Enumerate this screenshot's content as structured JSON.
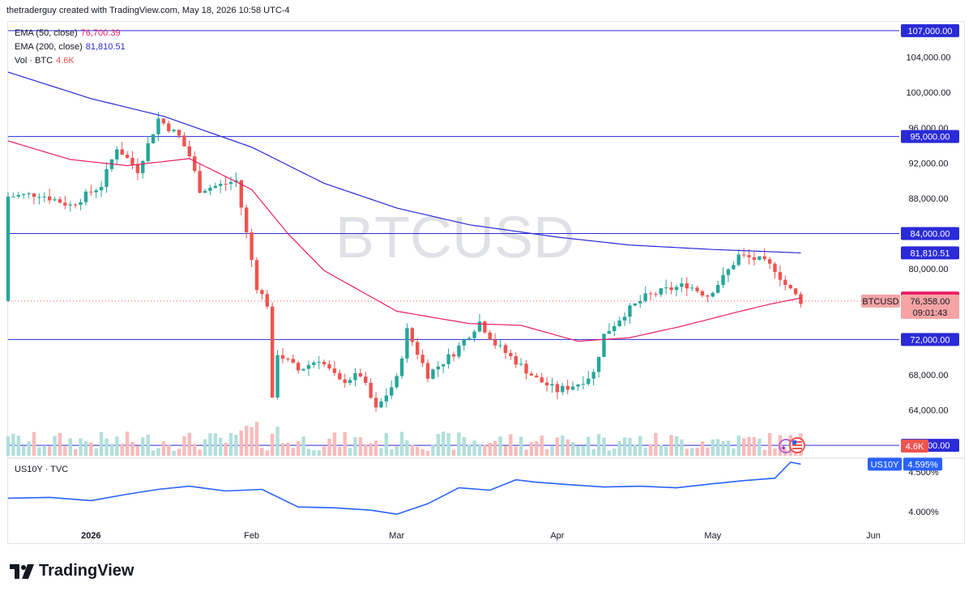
{
  "header": {
    "attribution": "thetraderguy created with TradingView.com, May 18, 2026 10:58 UTC-4"
  },
  "legend": {
    "ema50": {
      "label": "EMA (50, close)",
      "value": "76,700.39",
      "color": "#e91e63"
    },
    "ema200": {
      "label": "EMA (200, close)",
      "value": "81,810.51",
      "color": "#2a2ad8"
    },
    "vol": {
      "label": "Vol · BTC",
      "value": "4.6K",
      "color": "#ef5350"
    },
    "us10y": {
      "label": "US10Y · TVC"
    }
  },
  "watermark": "BTCUSD",
  "branding": {
    "name": "TradingView",
    "icon": "tradingview-logo-icon"
  },
  "colors": {
    "up": "#26a69a",
    "down": "#ef5350",
    "vol_up": "#b2dfdb",
    "vol_down": "#f8bbbb",
    "level": "#2a2ad8",
    "us10y_line": "#2962ff"
  },
  "chart_data": [
    {
      "type": "candlestick",
      "symbol": "BTCUSD",
      "ylim": [
        59000,
        108000
      ],
      "y_ticks": [
        "104,000.00",
        "100,000.00",
        "96,000.00",
        "92,000.00",
        "88,000.00",
        "80,000.00",
        "68,000.00",
        "64,000.00"
      ],
      "x_ticks": [
        "2026",
        "Feb",
        "Mar",
        "Apr",
        "May",
        "Jun"
      ],
      "horizontal_levels": [
        {
          "value": 107000,
          "label": "107,000.00"
        },
        {
          "value": 95000,
          "label": "95,000.00"
        },
        {
          "value": 84000,
          "label": "84,000.00"
        },
        {
          "value": 72000,
          "label": "72,000.00"
        },
        {
          "value": 60000,
          "label": "60,000.00"
        }
      ],
      "price_badges": {
        "ema200": "81,810.51",
        "ema50": "76,700.39",
        "symbol_tag": "BTCUSD",
        "last_price": "76,358.00",
        "countdown": "09:01:43",
        "volume": "4.6K"
      },
      "close_waypoints": [
        [
          "2025-12-16",
          88200
        ],
        [
          "2025-12-22",
          88500
        ],
        [
          "2025-12-28",
          87200
        ],
        [
          "2026-01-03",
          89500
        ],
        [
          "2026-01-06",
          93800
        ],
        [
          "2026-01-10",
          91200
        ],
        [
          "2026-01-14",
          97000
        ],
        [
          "2026-01-18",
          95000
        ],
        [
          "2026-01-20",
          92800
        ],
        [
          "2026-01-22",
          89000
        ],
        [
          "2026-01-26",
          89500
        ],
        [
          "2026-01-29",
          90000
        ],
        [
          "2026-01-31",
          84000
        ],
        [
          "2026-02-02",
          78000
        ],
        [
          "2026-02-04",
          76000
        ],
        [
          "2026-02-05",
          65000
        ],
        [
          "2026-02-06",
          70500
        ],
        [
          "2026-02-10",
          68500
        ],
        [
          "2026-02-14",
          69800
        ],
        [
          "2026-02-18",
          67200
        ],
        [
          "2026-02-22",
          68000
        ],
        [
          "2026-02-25",
          64000
        ],
        [
          "2026-03-01",
          67500
        ],
        [
          "2026-03-03",
          73000
        ],
        [
          "2026-03-07",
          68000
        ],
        [
          "2026-03-12",
          70500
        ],
        [
          "2026-03-17",
          74000
        ],
        [
          "2026-03-20",
          71500
        ],
        [
          "2026-03-24",
          69500
        ],
        [
          "2026-03-28",
          67500
        ],
        [
          "2026-04-01",
          66200
        ],
        [
          "2026-04-05",
          67000
        ],
        [
          "2026-04-08",
          68200
        ],
        [
          "2026-04-10",
          72500
        ],
        [
          "2026-04-14",
          75000
        ],
        [
          "2026-04-18",
          76800
        ],
        [
          "2026-04-22",
          77600
        ],
        [
          "2026-04-26",
          78200
        ],
        [
          "2026-04-30",
          77000
        ],
        [
          "2026-05-03",
          79000
        ],
        [
          "2026-05-06",
          81500
        ],
        [
          "2026-05-10",
          81000
        ],
        [
          "2026-05-13",
          80000
        ],
        [
          "2026-05-15",
          78200
        ],
        [
          "2026-05-18",
          76358
        ]
      ],
      "ema200_waypoints": [
        [
          "2025-12-16",
          102300
        ],
        [
          "2026-01-01",
          99300
        ],
        [
          "2026-01-15",
          97300
        ],
        [
          "2026-02-01",
          93800
        ],
        [
          "2026-02-15",
          89700
        ],
        [
          "2026-03-01",
          86900
        ],
        [
          "2026-03-15",
          85000
        ],
        [
          "2026-04-01",
          83600
        ],
        [
          "2026-04-15",
          82700
        ],
        [
          "2026-05-01",
          82200
        ],
        [
          "2026-05-18",
          81810
        ]
      ],
      "ema50_waypoints": [
        [
          "2025-12-16",
          94500
        ],
        [
          "2025-12-28",
          92400
        ],
        [
          "2026-01-08",
          91700
        ],
        [
          "2026-01-20",
          92500
        ],
        [
          "2026-02-01",
          89000
        ],
        [
          "2026-02-08",
          84000
        ],
        [
          "2026-02-15",
          79800
        ],
        [
          "2026-03-01",
          75200
        ],
        [
          "2026-03-15",
          73800
        ],
        [
          "2026-03-25",
          73600
        ],
        [
          "2026-04-05",
          71800
        ],
        [
          "2026-04-15",
          72200
        ],
        [
          "2026-04-25",
          73500
        ],
        [
          "2026-05-05",
          75000
        ],
        [
          "2026-05-12",
          76000
        ],
        [
          "2026-05-18",
          76700
        ]
      ]
    },
    {
      "type": "line",
      "name": "US10Y",
      "ylim": [
        3.82,
        4.66
      ],
      "y_ticks": [
        "4.500%",
        "4.000%"
      ],
      "last_value": "4.595%",
      "tag": "US10Y",
      "x": [
        "2025-12-16",
        "2025-12-24",
        "2026-01-01",
        "2026-01-08",
        "2026-01-14",
        "2026-01-20",
        "2026-01-27",
        "2026-02-03",
        "2026-02-10",
        "2026-02-17",
        "2026-02-24",
        "2026-03-01",
        "2026-03-07",
        "2026-03-13",
        "2026-03-19",
        "2026-03-24",
        "2026-03-28",
        "2026-04-03",
        "2026-04-10",
        "2026-04-17",
        "2026-04-24",
        "2026-05-01",
        "2026-05-07",
        "2026-05-13",
        "2026-05-16",
        "2026-05-18"
      ],
      "y": [
        4.17,
        4.18,
        4.14,
        4.22,
        4.28,
        4.32,
        4.26,
        4.28,
        4.06,
        4.05,
        4.02,
        3.97,
        4.1,
        4.3,
        4.27,
        4.4,
        4.37,
        4.34,
        4.31,
        4.32,
        4.3,
        4.35,
        4.39,
        4.42,
        4.62,
        4.595
      ]
    }
  ]
}
